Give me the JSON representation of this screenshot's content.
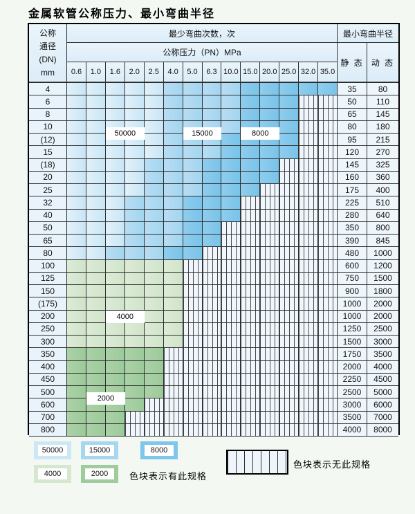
{
  "page": {
    "title": "金属软管公称压力、最小弯曲半径"
  },
  "table": {
    "header": {
      "dn_lines": [
        "公称",
        "通径",
        "(DN)",
        "mm"
      ],
      "bend_cycles": "最少弯曲次数，次",
      "pressure_header": "公称压力（PN）MPa",
      "pressures": [
        "0.6",
        "1.0",
        "1.6",
        "2.0",
        "2.5",
        "4.0",
        "5.0",
        "6.3",
        "10.0",
        "15.0",
        "20.0",
        "25.0",
        "32.0",
        "35.0"
      ],
      "radius_header": "最小弯曲半径",
      "static_label": "静 态",
      "dynamic_label": "动 态"
    },
    "rows": [
      {
        "dn": "4",
        "static": "35",
        "dynamic": "80",
        "zone": "blue",
        "z": [
          5,
          9,
          14
        ]
      },
      {
        "dn": "6",
        "static": "50",
        "dynamic": "110",
        "zone": "blue",
        "z": [
          5,
          9,
          12
        ]
      },
      {
        "dn": "8",
        "static": "65",
        "dynamic": "145",
        "zone": "blue",
        "z": [
          5,
          9,
          12
        ]
      },
      {
        "dn": "10",
        "static": "80",
        "dynamic": "180",
        "zone": "blue",
        "z": [
          5,
          9,
          12
        ]
      },
      {
        "dn": "(12)",
        "static": "95",
        "dynamic": "215",
        "zone": "blue",
        "z": [
          5,
          8,
          12
        ]
      },
      {
        "dn": "15",
        "static": "120",
        "dynamic": "270",
        "zone": "blue",
        "z": [
          5,
          8,
          12
        ]
      },
      {
        "dn": "(18)",
        "static": "145",
        "dynamic": "325",
        "zone": "blue",
        "z": [
          4,
          7,
          11
        ]
      },
      {
        "dn": "20",
        "static": "160",
        "dynamic": "360",
        "zone": "blue",
        "z": [
          4,
          7,
          11
        ]
      },
      {
        "dn": "25",
        "static": "175",
        "dynamic": "400",
        "zone": "blue",
        "z": [
          4,
          7,
          10
        ]
      },
      {
        "dn": "32",
        "static": "225",
        "dynamic": "510",
        "zone": "blue",
        "z": [
          3,
          6,
          9
        ]
      },
      {
        "dn": "40",
        "static": "280",
        "dynamic": "640",
        "zone": "blue",
        "z": [
          3,
          6,
          9
        ]
      },
      {
        "dn": "50",
        "static": "350",
        "dynamic": "800",
        "zone": "blue",
        "z": [
          3,
          6,
          8
        ]
      },
      {
        "dn": "65",
        "static": "390",
        "dynamic": "845",
        "zone": "blue",
        "z": [
          3,
          6,
          8
        ]
      },
      {
        "dn": "80",
        "static": "480",
        "dynamic": "1000",
        "zone": "blue",
        "z": [
          2,
          5,
          7
        ]
      },
      {
        "dn": "100",
        "static": "600",
        "dynamic": "1200",
        "zone": "green",
        "shade": "g1",
        "z": [
          6
        ]
      },
      {
        "dn": "125",
        "static": "750",
        "dynamic": "1500",
        "zone": "green",
        "shade": "g1",
        "z": [
          6
        ]
      },
      {
        "dn": "150",
        "static": "900",
        "dynamic": "1800",
        "zone": "green",
        "shade": "g1",
        "z": [
          6
        ]
      },
      {
        "dn": "(175)",
        "static": "1000",
        "dynamic": "2000",
        "zone": "green",
        "shade": "g1",
        "z": [
          6
        ]
      },
      {
        "dn": "200",
        "static": "1000",
        "dynamic": "2000",
        "zone": "green",
        "shade": "g1",
        "z": [
          6
        ]
      },
      {
        "dn": "250",
        "static": "1250",
        "dynamic": "2500",
        "zone": "green",
        "shade": "g1",
        "z": [
          6
        ]
      },
      {
        "dn": "300",
        "static": "1500",
        "dynamic": "3000",
        "zone": "green",
        "shade": "g1",
        "z": [
          6
        ]
      },
      {
        "dn": "350",
        "static": "1750",
        "dynamic": "3500",
        "zone": "green",
        "shade": "g2",
        "z": [
          5
        ]
      },
      {
        "dn": "400",
        "static": "2000",
        "dynamic": "4000",
        "zone": "green",
        "shade": "g2",
        "z": [
          5
        ]
      },
      {
        "dn": "450",
        "static": "2250",
        "dynamic": "4500",
        "zone": "green",
        "shade": "g2",
        "z": [
          5
        ]
      },
      {
        "dn": "500",
        "static": "2500",
        "dynamic": "5000",
        "zone": "green",
        "shade": "g2",
        "z": [
          5
        ]
      },
      {
        "dn": "600",
        "static": "3000",
        "dynamic": "6000",
        "zone": "green",
        "shade": "g2",
        "z": [
          4
        ]
      },
      {
        "dn": "700",
        "static": "3500",
        "dynamic": "7000",
        "zone": "green",
        "shade": "g2",
        "z": [
          3
        ]
      },
      {
        "dn": "800",
        "static": "4000",
        "dynamic": "8000",
        "zone": "green",
        "shade": "g2",
        "z": [
          3
        ]
      }
    ]
  },
  "zone_colors": {
    "cycles_50000": "#cce8f7",
    "cycles_15000": "#a6d7f1",
    "cycles_8000": "#7ec6ea",
    "cycles_4000": "#d5e7cf",
    "cycles_2000": "#9fcc9c"
  },
  "overlays": [
    {
      "text": "50000",
      "col": 3,
      "span": 2,
      "row": 3,
      "pos": "boundary"
    },
    {
      "text": "15000",
      "col": 7,
      "span": 2,
      "row": 3,
      "pos": "boundary"
    },
    {
      "text": "8000",
      "col": 10,
      "span": 2,
      "row": 3,
      "pos": "boundary"
    },
    {
      "text": "4000",
      "col": 3,
      "span": 2,
      "row": 18,
      "pos": "center"
    },
    {
      "text": "2000",
      "col": 2,
      "span": 2,
      "row": 24,
      "pos": "boundary"
    }
  ],
  "legend": {
    "items": [
      {
        "label": "50000",
        "cls": "b1"
      },
      {
        "label": "15000",
        "cls": "b2"
      },
      {
        "label": "8000",
        "cls": "b3"
      },
      {
        "label": "4000",
        "cls": "g1"
      },
      {
        "label": "2000",
        "cls": "g2"
      }
    ],
    "has_spec_text": "色块表示有此规格",
    "no_spec_text": "色块表示无此规格"
  }
}
